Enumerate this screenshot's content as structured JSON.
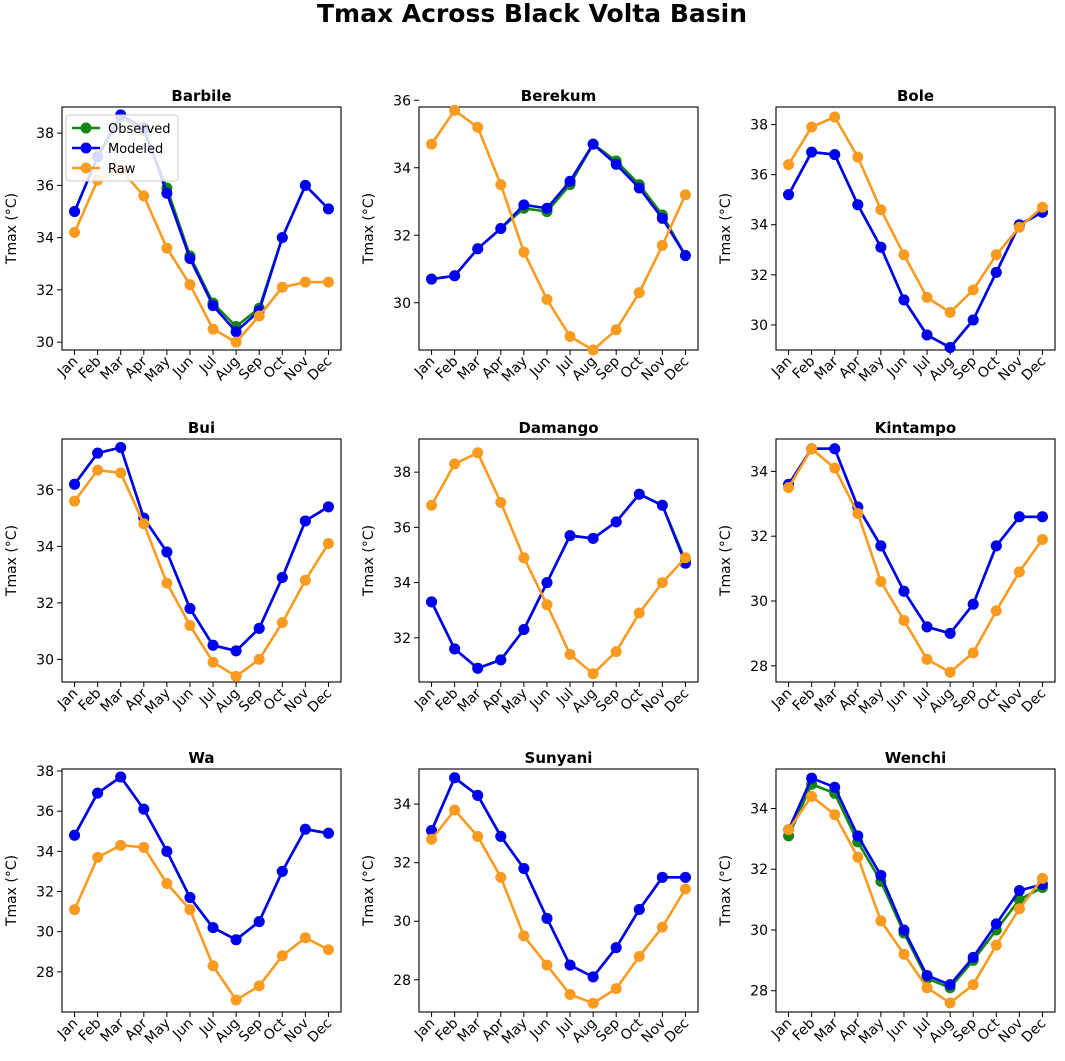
{
  "title": "Tmax Across Black Volta Basin",
  "chart_data": [
    {
      "type": "line",
      "title": "Barbile",
      "ylabel": "Tmax (°C)",
      "ylim": [
        29.7,
        39.0
      ],
      "yticks": [
        30,
        32,
        34,
        36,
        38
      ],
      "categories": [
        "Jan",
        "Feb",
        "Mar",
        "Apr",
        "May",
        "Jun",
        "Jul",
        "Aug",
        "Sep",
        "Oct",
        "Nov",
        "Dec"
      ],
      "legend": {
        "position": "upper-left"
      },
      "series": [
        {
          "name": "Observed",
          "color": "#138613",
          "values": [
            35.0,
            37.1,
            38.6,
            38.1,
            35.9,
            33.3,
            31.5,
            30.6,
            31.3,
            34.0,
            36.0,
            35.1
          ]
        },
        {
          "name": "Modeled",
          "color": "#0000f0",
          "values": [
            35.0,
            37.1,
            38.7,
            38.2,
            35.7,
            33.2,
            31.4,
            30.4,
            31.2,
            34.0,
            36.0,
            35.1
          ]
        },
        {
          "name": "Raw",
          "color": "#f99b21",
          "values": [
            34.2,
            36.2,
            36.6,
            35.6,
            33.6,
            32.2,
            30.5,
            30.0,
            31.0,
            32.1,
            32.3,
            32.3
          ]
        }
      ]
    },
    {
      "type": "line",
      "title": "Berekum",
      "ylabel": "Tmax (°C)",
      "ylim": [
        28.6,
        35.8
      ],
      "yticks": [
        30,
        32,
        34,
        36
      ],
      "categories": [
        "Jan",
        "Feb",
        "Mar",
        "Apr",
        "May",
        "Jun",
        "Jul",
        "Aug",
        "Sep",
        "Oct",
        "Nov",
        "Dec"
      ],
      "series": [
        {
          "color": "#138613",
          "values": [
            30.7,
            30.8,
            31.6,
            32.2,
            32.8,
            32.7,
            33.5,
            34.7,
            34.2,
            33.5,
            32.6,
            31.4
          ]
        },
        {
          "color": "#0000f0",
          "values": [
            30.7,
            30.8,
            31.6,
            32.2,
            32.9,
            32.8,
            33.6,
            34.7,
            34.1,
            33.4,
            32.5,
            31.4
          ]
        },
        {
          "color": "#f99b21",
          "values": [
            34.7,
            35.7,
            35.2,
            33.5,
            31.5,
            30.1,
            29.0,
            28.6,
            29.2,
            30.3,
            31.7,
            33.2
          ]
        }
      ]
    },
    {
      "type": "line",
      "title": "Bole",
      "ylabel": "Tmax (°C)",
      "ylim": [
        29.0,
        38.7
      ],
      "yticks": [
        30,
        32,
        34,
        36,
        38
      ],
      "categories": [
        "Jan",
        "Feb",
        "Mar",
        "Apr",
        "May",
        "Jun",
        "Jul",
        "Aug",
        "Sep",
        "Oct",
        "Nov",
        "Dec"
      ],
      "series": [
        {
          "color": "#138613",
          "values": [
            35.2,
            36.9,
            36.8,
            34.8,
            33.1,
            31.0,
            29.6,
            29.1,
            30.2,
            32.1,
            34.0,
            34.5
          ]
        },
        {
          "color": "#0000f0",
          "values": [
            35.2,
            36.9,
            36.8,
            34.8,
            33.1,
            31.0,
            29.6,
            29.1,
            30.2,
            32.1,
            34.0,
            34.5
          ]
        },
        {
          "color": "#f99b21",
          "values": [
            36.4,
            37.9,
            38.3,
            36.7,
            34.6,
            32.8,
            31.1,
            30.5,
            31.4,
            32.8,
            33.9,
            34.7
          ]
        }
      ]
    },
    {
      "type": "line",
      "title": "Bui",
      "ylabel": "Tmax (°C)",
      "ylim": [
        29.2,
        37.8
      ],
      "yticks": [
        30,
        32,
        34,
        36
      ],
      "categories": [
        "Jan",
        "Feb",
        "Mar",
        "Apr",
        "May",
        "Jun",
        "Jul",
        "Aug",
        "Sep",
        "Oct",
        "Nov",
        "Dec"
      ],
      "series": [
        {
          "color": "#138613",
          "values": [
            36.2,
            37.3,
            37.5,
            35.0,
            33.8,
            31.8,
            30.5,
            30.3,
            31.1,
            32.9,
            34.9,
            35.4
          ]
        },
        {
          "color": "#0000f0",
          "values": [
            36.2,
            37.3,
            37.5,
            35.0,
            33.8,
            31.8,
            30.5,
            30.3,
            31.1,
            32.9,
            34.9,
            35.4
          ]
        },
        {
          "color": "#f99b21",
          "values": [
            35.6,
            36.7,
            36.6,
            34.8,
            32.7,
            31.2,
            29.9,
            29.4,
            30.0,
            31.3,
            32.8,
            34.1
          ]
        }
      ]
    },
    {
      "type": "line",
      "title": "Damango",
      "ylabel": "Tmax (°C)",
      "ylim": [
        30.4,
        39.2
      ],
      "yticks": [
        32,
        34,
        36,
        38
      ],
      "categories": [
        "Jan",
        "Feb",
        "Mar",
        "Apr",
        "May",
        "Jun",
        "Jul",
        "Aug",
        "Sep",
        "Oct",
        "Nov",
        "Dec"
      ],
      "series": [
        {
          "color": "#138613",
          "values": [
            33.3,
            31.6,
            30.9,
            31.2,
            32.3,
            34.0,
            35.7,
            35.6,
            36.2,
            37.2,
            36.8,
            34.8
          ]
        },
        {
          "color": "#0000f0",
          "values": [
            33.3,
            31.6,
            30.9,
            31.2,
            32.3,
            34.0,
            35.7,
            35.6,
            36.2,
            37.2,
            36.8,
            34.7
          ]
        },
        {
          "color": "#f99b21",
          "values": [
            36.8,
            38.3,
            38.7,
            36.9,
            34.9,
            33.2,
            31.4,
            30.7,
            31.5,
            32.9,
            34.0,
            34.9
          ]
        }
      ]
    },
    {
      "type": "line",
      "title": "Kintampo",
      "ylabel": "Tmax (°C)",
      "ylim": [
        27.5,
        35.0
      ],
      "yticks": [
        28,
        30,
        32,
        34
      ],
      "categories": [
        "Jan",
        "Feb",
        "Mar",
        "Apr",
        "May",
        "Jun",
        "Jul",
        "Aug",
        "Sep",
        "Oct",
        "Nov",
        "Dec"
      ],
      "series": [
        {
          "color": "#138613",
          "values": [
            33.6,
            34.7,
            34.7,
            32.9,
            31.7,
            30.3,
            29.2,
            29.0,
            29.9,
            31.7,
            32.6,
            32.6
          ]
        },
        {
          "color": "#0000f0",
          "values": [
            33.6,
            34.7,
            34.7,
            32.9,
            31.7,
            30.3,
            29.2,
            29.0,
            29.9,
            31.7,
            32.6,
            32.6
          ]
        },
        {
          "color": "#f99b21",
          "values": [
            33.5,
            34.7,
            34.1,
            32.7,
            30.6,
            29.4,
            28.2,
            27.8,
            28.4,
            29.7,
            30.9,
            31.9
          ]
        }
      ]
    },
    {
      "type": "line",
      "title": "Wa",
      "ylabel": "Tmax (°C)",
      "ylim": [
        26.0,
        38.1
      ],
      "yticks": [
        28,
        30,
        32,
        34,
        36,
        38
      ],
      "categories": [
        "Jan",
        "Feb",
        "Mar",
        "Apr",
        "May",
        "Jun",
        "Jul",
        "Aug",
        "Sep",
        "Oct",
        "Nov",
        "Dec"
      ],
      "series": [
        {
          "color": "#138613",
          "values": [
            34.8,
            36.9,
            37.7,
            36.1,
            34.0,
            31.7,
            30.2,
            29.6,
            30.5,
            33.0,
            35.1,
            34.9
          ]
        },
        {
          "color": "#0000f0",
          "values": [
            34.8,
            36.9,
            37.7,
            36.1,
            34.0,
            31.7,
            30.2,
            29.6,
            30.5,
            33.0,
            35.1,
            34.9
          ]
        },
        {
          "color": "#f99b21",
          "values": [
            31.1,
            33.7,
            34.3,
            34.2,
            32.4,
            31.1,
            28.3,
            26.6,
            27.3,
            28.8,
            29.7,
            29.1
          ]
        }
      ]
    },
    {
      "type": "line",
      "title": "Sunyani",
      "ylabel": "Tmax (°C)",
      "ylim": [
        26.9,
        35.2
      ],
      "yticks": [
        28,
        30,
        32,
        34
      ],
      "categories": [
        "Jan",
        "Feb",
        "Mar",
        "Apr",
        "May",
        "Jun",
        "Jul",
        "Aug",
        "Sep",
        "Oct",
        "Nov",
        "Dec"
      ],
      "series": [
        {
          "color": "#138613",
          "values": [
            33.1,
            34.9,
            34.3,
            32.9,
            31.8,
            30.1,
            28.5,
            28.1,
            29.1,
            30.4,
            31.5,
            31.5
          ]
        },
        {
          "color": "#0000f0",
          "values": [
            33.1,
            34.9,
            34.3,
            32.9,
            31.8,
            30.1,
            28.5,
            28.1,
            29.1,
            30.4,
            31.5,
            31.5
          ]
        },
        {
          "color": "#f99b21",
          "values": [
            32.8,
            33.8,
            32.9,
            31.5,
            29.5,
            28.5,
            27.5,
            27.2,
            27.7,
            28.8,
            29.8,
            31.1
          ]
        }
      ]
    },
    {
      "type": "line",
      "title": "Wenchi",
      "ylabel": "Tmax (°C)",
      "ylim": [
        27.3,
        35.3
      ],
      "yticks": [
        28,
        30,
        32,
        34
      ],
      "categories": [
        "Jan",
        "Feb",
        "Mar",
        "Apr",
        "May",
        "Jun",
        "Jul",
        "Aug",
        "Sep",
        "Oct",
        "Nov",
        "Dec"
      ],
      "series": [
        {
          "color": "#138613",
          "values": [
            33.1,
            34.8,
            34.5,
            32.9,
            31.6,
            29.9,
            28.4,
            28.1,
            29.0,
            30.0,
            31.0,
            31.4
          ]
        },
        {
          "color": "#0000f0",
          "values": [
            33.3,
            35.0,
            34.7,
            33.1,
            31.8,
            30.0,
            28.5,
            28.2,
            29.1,
            30.2,
            31.3,
            31.5
          ]
        },
        {
          "color": "#f99b21",
          "values": [
            33.3,
            34.4,
            33.8,
            32.4,
            30.3,
            29.2,
            28.1,
            27.6,
            28.2,
            29.5,
            30.7,
            31.7
          ]
        }
      ]
    }
  ]
}
